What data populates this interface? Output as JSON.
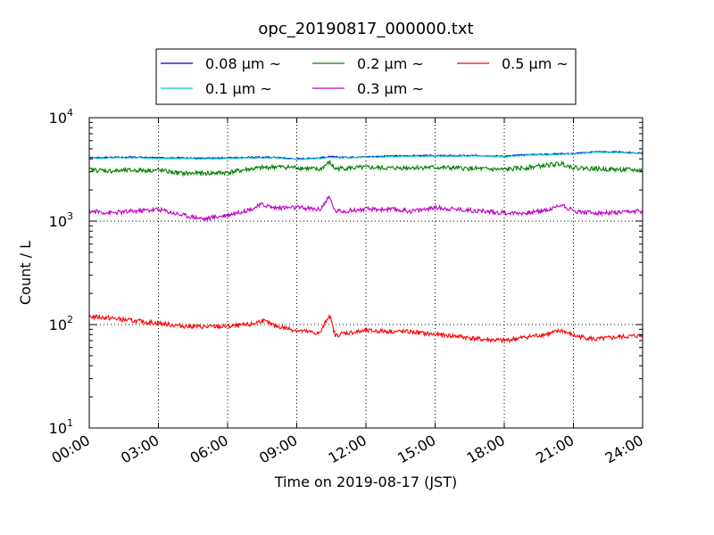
{
  "chart_data": {
    "type": "line",
    "title": "opc_20190817_000000.txt",
    "xlabel": "Time on 2019-08-17 (JST)",
    "ylabel": "Count / L",
    "y_scale": "log",
    "ylim": [
      10,
      10000
    ],
    "xlim": [
      "00:00",
      "24:00"
    ],
    "x_ticks": [
      "00:00",
      "03:00",
      "06:00",
      "09:00",
      "12:00",
      "15:00",
      "18:00",
      "21:00",
      "24:00"
    ],
    "y_ticks": [
      {
        "base": "10",
        "exp": "1"
      },
      {
        "base": "10",
        "exp": "2"
      },
      {
        "base": "10",
        "exp": "3"
      },
      {
        "base": "10",
        "exp": "4"
      }
    ],
    "grid": true,
    "legend_position": "top-center",
    "series": [
      {
        "name": "0.08 μm ~",
        "color": "#0000cc",
        "x": [
          "00:00",
          "01:00",
          "02:00",
          "03:00",
          "04:00",
          "05:00",
          "06:00",
          "07:00",
          "08:00",
          "09:00",
          "10:00",
          "10:25",
          "11:00",
          "12:00",
          "13:00",
          "14:00",
          "15:00",
          "16:00",
          "17:00",
          "18:00",
          "19:00",
          "20:00",
          "20:30",
          "21:00",
          "22:00",
          "23:00",
          "24:00"
        ],
        "values": [
          4100,
          4150,
          4150,
          4100,
          4100,
          4050,
          4100,
          4150,
          4150,
          4000,
          4100,
          4200,
          4150,
          4200,
          4250,
          4300,
          4300,
          4300,
          4300,
          4250,
          4400,
          4450,
          4500,
          4500,
          4700,
          4650,
          4550
        ]
      },
      {
        "name": "0.1 μm ~",
        "color": "#00cccc",
        "x": [
          "00:00",
          "01:00",
          "02:00",
          "03:00",
          "04:00",
          "05:00",
          "06:00",
          "07:00",
          "08:00",
          "09:00",
          "10:00",
          "10:25",
          "11:00",
          "12:00",
          "13:00",
          "14:00",
          "15:00",
          "16:00",
          "17:00",
          "18:00",
          "19:00",
          "20:00",
          "20:30",
          "21:00",
          "22:00",
          "23:00",
          "24:00"
        ],
        "values": [
          4050,
          4100,
          4100,
          4050,
          4050,
          4000,
          4050,
          4100,
          4100,
          3950,
          4050,
          4150,
          4100,
          4150,
          4200,
          4250,
          4250,
          4250,
          4250,
          4200,
          4350,
          4400,
          4450,
          4450,
          4650,
          4600,
          4500
        ]
      },
      {
        "name": "0.2 μm ~",
        "color": "#008000",
        "x": [
          "00:00",
          "01:00",
          "02:00",
          "03:00",
          "04:00",
          "05:00",
          "06:00",
          "07:00",
          "08:00",
          "09:00",
          "10:00",
          "10:25",
          "10:40",
          "11:00",
          "12:00",
          "13:00",
          "14:00",
          "15:00",
          "16:00",
          "17:00",
          "18:00",
          "19:00",
          "20:00",
          "20:30",
          "21:00",
          "22:00",
          "23:00",
          "24:00"
        ],
        "values": [
          3150,
          3050,
          3100,
          3100,
          2900,
          2900,
          2950,
          3200,
          3350,
          3300,
          3150,
          3700,
          3200,
          3250,
          3300,
          3250,
          3300,
          3300,
          3250,
          3200,
          3150,
          3300,
          3500,
          3600,
          3300,
          3200,
          3150,
          3100
        ]
      },
      {
        "name": "0.3 μm ~",
        "color": "#bf00bf",
        "x": [
          "00:00",
          "01:00",
          "02:00",
          "03:00",
          "04:00",
          "05:00",
          "06:00",
          "07:00",
          "07:30",
          "08:00",
          "09:00",
          "10:00",
          "10:25",
          "10:40",
          "11:00",
          "12:00",
          "13:00",
          "14:00",
          "15:00",
          "16:00",
          "17:00",
          "18:00",
          "19:00",
          "20:00",
          "20:30",
          "21:00",
          "22:00",
          "23:00",
          "24:00"
        ],
        "values": [
          1250,
          1200,
          1250,
          1300,
          1150,
          1050,
          1150,
          1300,
          1450,
          1350,
          1350,
          1300,
          1700,
          1250,
          1250,
          1300,
          1300,
          1250,
          1350,
          1300,
          1250,
          1200,
          1200,
          1300,
          1450,
          1250,
          1200,
          1200,
          1250
        ]
      },
      {
        "name": "0.5 μm ~",
        "color": "#ff0000",
        "x": [
          "00:00",
          "01:00",
          "02:00",
          "03:00",
          "04:00",
          "05:00",
          "06:00",
          "07:00",
          "07:30",
          "08:00",
          "09:00",
          "10:00",
          "10:25",
          "10:40",
          "11:00",
          "12:00",
          "13:00",
          "14:00",
          "15:00",
          "16:00",
          "17:00",
          "18:00",
          "19:00",
          "20:00",
          "20:30",
          "21:00",
          "22:00",
          "23:00",
          "24:00"
        ],
        "values": [
          120,
          115,
          108,
          103,
          97,
          95,
          96,
          100,
          110,
          98,
          88,
          82,
          125,
          78,
          82,
          87,
          86,
          85,
          80,
          77,
          72,
          70,
          76,
          82,
          88,
          78,
          72,
          76,
          78
        ]
      }
    ]
  }
}
